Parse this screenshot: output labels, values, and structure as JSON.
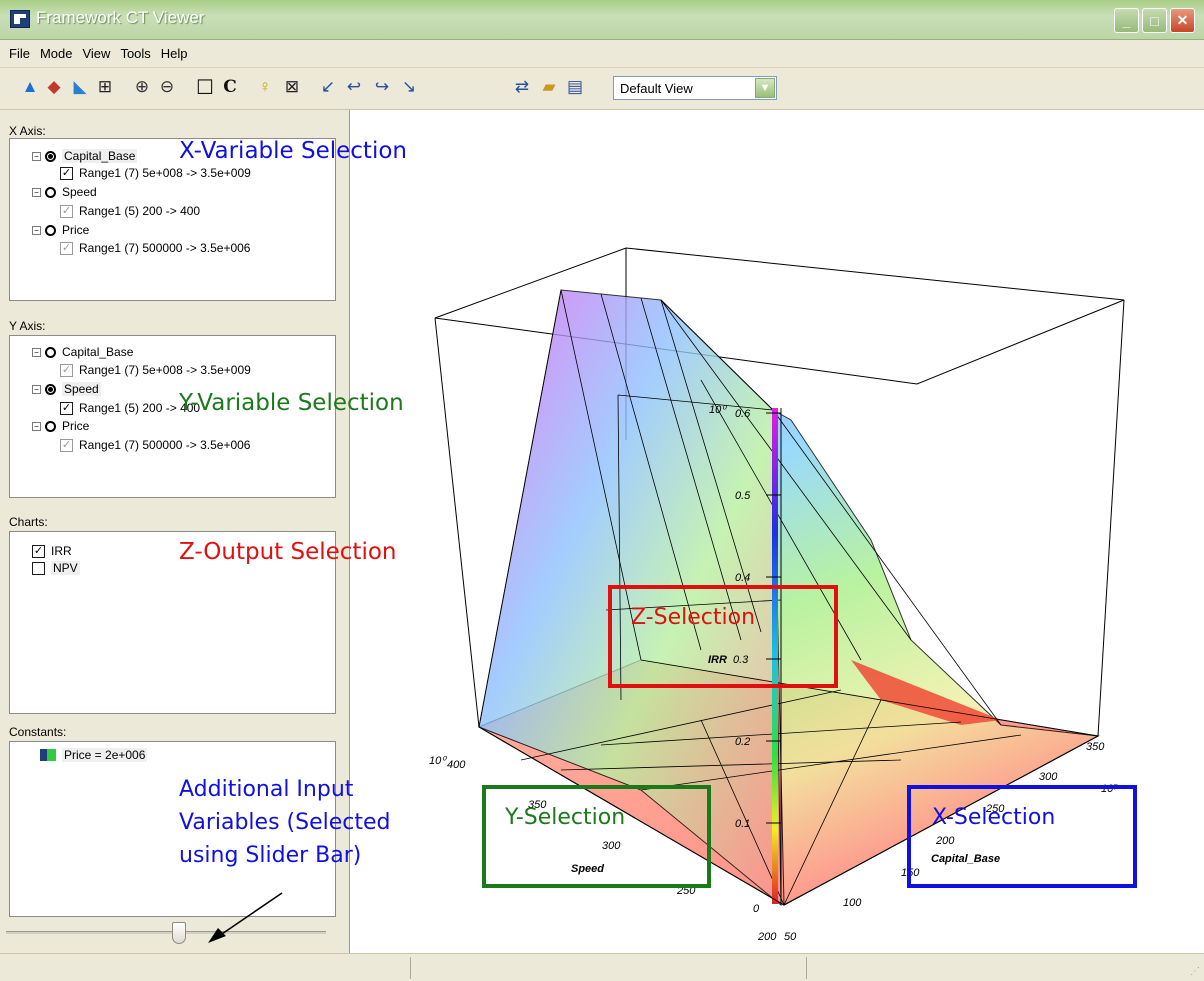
{
  "window": {
    "title": "Framework CT Viewer"
  },
  "menu": [
    "File",
    "Mode",
    "View",
    "Tools",
    "Help"
  ],
  "toolbar": {
    "view_select_value": "Default View"
  },
  "x_axis": {
    "label": "X Axis:",
    "items": [
      {
        "name": "Capital_Base",
        "range": "Range1 (7)  5e+008  ->  3.5e+009"
      },
      {
        "name": "Speed",
        "range": "Range1 (5)  200  ->  400"
      },
      {
        "name": "Price",
        "range": "Range1 (7)  500000  ->  3.5e+006"
      }
    ]
  },
  "y_axis": {
    "label": "Y Axis:",
    "items": [
      {
        "name": "Capital_Base",
        "range": "Range1 (7)  5e+008  ->  3.5e+009"
      },
      {
        "name": "Speed",
        "range": "Range1 (5)  200  ->  400"
      },
      {
        "name": "Price",
        "range": "Range1 (7)  500000  ->  3.5e+006"
      }
    ]
  },
  "charts": {
    "label": "Charts:",
    "items": [
      "IRR",
      "NPV"
    ]
  },
  "constants": {
    "label": "Constants:",
    "items": [
      "Price = 2e+006"
    ]
  },
  "annotations": {
    "x_var": "X-Variable Selection",
    "y_var": "Y-Variable Selection",
    "z_out": "Z-Output Selection",
    "additional": [
      "Additional Input",
      "Variables (Selected",
      "using Slider Bar)"
    ],
    "z_sel": "Z-Selection",
    "y_sel": "Y-Selection",
    "x_sel": "X-Selection"
  },
  "colors": {
    "x": "#1010e0",
    "y": "#1a7a1a",
    "z": "#e01010"
  },
  "plot": {
    "z_label": "IRR",
    "y_label": "Speed",
    "x_label": "Capital_Base",
    "z_ticks": [
      "0",
      "0.1",
      "0.2",
      "0.3",
      "0.4",
      "0.5",
      "0.6"
    ],
    "x_ticks": [
      "50",
      "100",
      "150",
      "200",
      "250",
      "300",
      "350"
    ],
    "y_ticks": [
      "200",
      "250",
      "300",
      "350",
      "400"
    ],
    "x_exponent": "10⁷",
    "z_exponent": "10⁰",
    "y_exponent": "10⁰"
  }
}
